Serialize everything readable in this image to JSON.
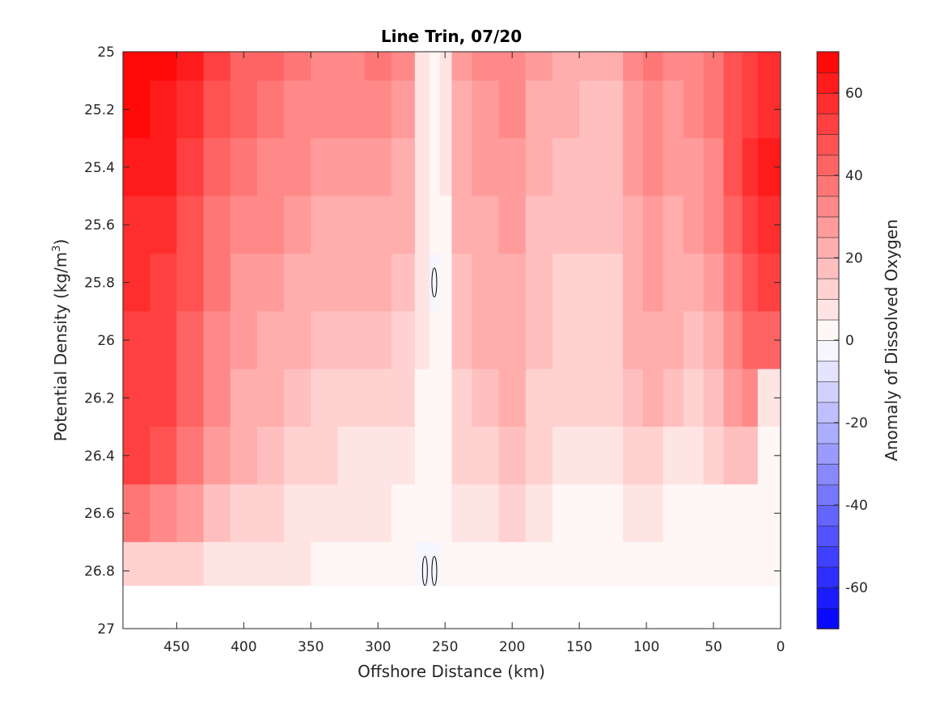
{
  "chart_data": {
    "type": "heatmap",
    "title": "Line Trin, 07/20",
    "xlabel": "Offshore Distance (km)",
    "ylabel_main": "Potential Density (kg/m",
    "ylabel_sup": "3",
    "ylabel_close": ")",
    "colorbar_label": "Anomaly of Dissolved Oxygen",
    "xlim": [
      490,
      0
    ],
    "ylim": [
      25,
      27
    ],
    "x_reversed": true,
    "y_reversed": true,
    "x_ticks": [
      450,
      400,
      350,
      300,
      250,
      200,
      150,
      100,
      50,
      0
    ],
    "y_ticks": [
      25,
      25.2,
      25.4,
      25.6,
      25.8,
      26,
      26.2,
      26.4,
      26.6,
      26.8,
      27
    ],
    "y_tick_labels": [
      "25",
      "25.2",
      "25.4",
      "25.6",
      "25.8",
      "26",
      "26.2",
      "26.4",
      "26.6",
      "26.8",
      "27"
    ],
    "colorbar_range": [
      -70,
      70
    ],
    "colorbar_levels_step": 5,
    "colorbar_ticks": [
      60,
      40,
      20,
      0,
      -20,
      -40,
      -60
    ],
    "colorbar_tick_labels": [
      "60",
      "40",
      "20",
      "0",
      "-20",
      "-40",
      "-60"
    ],
    "colormap": {
      "negative": "#0000ff",
      "zero": "#ffffff",
      "positive": "#ff0000"
    },
    "stations_x": [
      480,
      460,
      440,
      420,
      400,
      380,
      360,
      340,
      320,
      300,
      280,
      265,
      258,
      250,
      240,
      220,
      200,
      180,
      160,
      140,
      125,
      110,
      95,
      80,
      65,
      50,
      35,
      22,
      12
    ],
    "density_levels": [
      25.0,
      25.2,
      25.4,
      25.6,
      25.8,
      26.0,
      26.2,
      26.4,
      26.6,
      26.8
    ],
    "values": [
      [
        66,
        66,
        60,
        50,
        42,
        40,
        36,
        33,
        33,
        36,
        32,
        8,
        3,
        6,
        25,
        30,
        33,
        25,
        22,
        20,
        20,
        30,
        35,
        30,
        33,
        38,
        45,
        50,
        55
      ],
      [
        65,
        64,
        56,
        46,
        40,
        37,
        33,
        30,
        30,
        32,
        28,
        8,
        3,
        6,
        24,
        28,
        30,
        23,
        20,
        18,
        18,
        28,
        32,
        28,
        30,
        35,
        45,
        52,
        58
      ],
      [
        62,
        60,
        52,
        42,
        36,
        33,
        30,
        27,
        27,
        28,
        24,
        7,
        2,
        5,
        22,
        26,
        28,
        21,
        18,
        17,
        17,
        26,
        30,
        26,
        28,
        33,
        45,
        55,
        60
      ],
      [
        58,
        56,
        48,
        38,
        32,
        30,
        27,
        24,
        24,
        24,
        20,
        6,
        1,
        4,
        20,
        24,
        26,
        19,
        16,
        16,
        15,
        24,
        28,
        24,
        25,
        30,
        42,
        53,
        58
      ],
      [
        56,
        54,
        45,
        35,
        29,
        27,
        24,
        21,
        21,
        21,
        16,
        5,
        -1,
        3,
        18,
        22,
        24,
        17,
        14,
        14,
        13,
        22,
        26,
        22,
        22,
        27,
        38,
        48,
        52
      ],
      [
        54,
        52,
        42,
        32,
        26,
        24,
        21,
        16,
        15,
        16,
        13,
        5,
        1,
        3,
        16,
        21,
        22,
        16,
        13,
        12,
        12,
        20,
        24,
        20,
        18,
        23,
        33,
        40,
        44
      ],
      [
        53,
        52,
        40,
        30,
        24,
        21,
        17,
        13,
        12,
        12,
        10,
        4,
        1,
        3,
        14,
        19,
        20,
        14,
        11,
        10,
        10,
        16,
        20,
        16,
        14,
        18,
        26,
        30,
        6
      ],
      [
        50,
        48,
        36,
        26,
        20,
        17,
        13,
        10,
        9,
        9,
        7,
        3,
        2,
        3,
        10,
        14,
        15,
        10,
        8,
        7,
        7,
        11,
        12,
        9,
        7,
        10,
        16,
        18,
        4
      ],
      [
        35,
        34,
        26,
        18,
        14,
        12,
        9,
        6,
        6,
        5,
        4,
        2,
        1,
        2,
        6,
        9,
        10,
        6,
        4,
        4,
        3,
        6,
        6,
        3,
        1,
        2,
        4,
        4,
        2
      ],
      [
        12,
        12,
        10,
        8,
        7,
        6,
        5,
        4,
        3,
        2,
        1,
        -1,
        -1,
        1,
        2,
        4,
        3,
        2,
        1,
        1,
        1,
        1,
        0,
        0,
        0,
        0,
        0,
        0,
        0
      ]
    ]
  }
}
